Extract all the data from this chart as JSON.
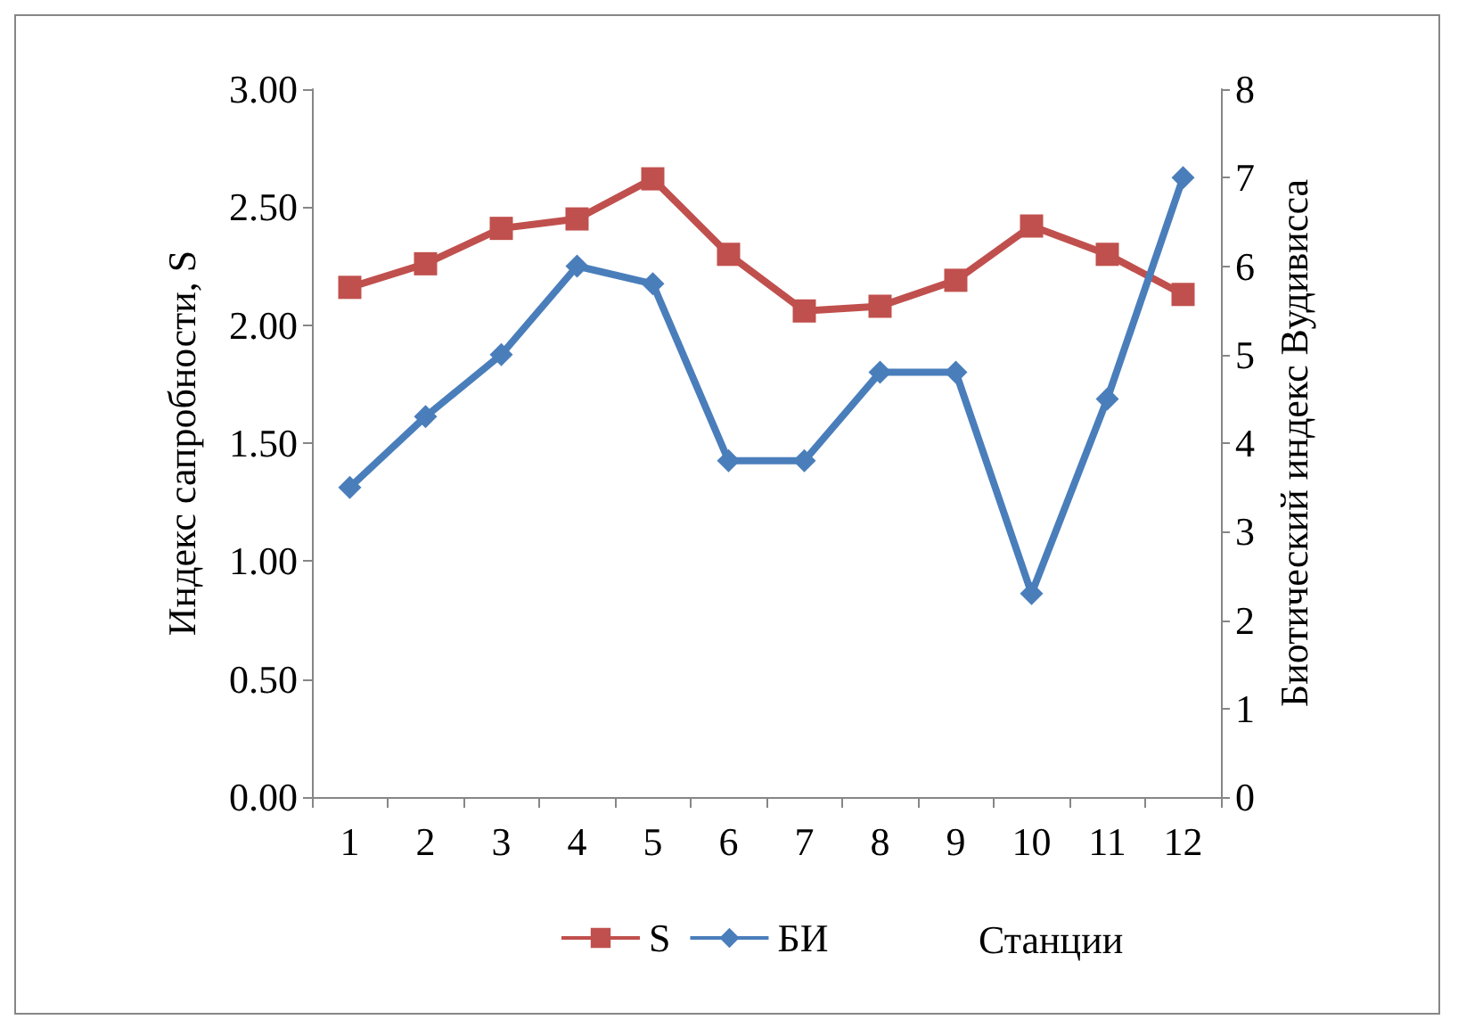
{
  "chart_data": {
    "type": "line",
    "xlabel": "Станции",
    "ylabel": "Индекс сапробности, S",
    "y2label": "Биотический индекс Вудивисса",
    "categories": [
      "1",
      "2",
      "3",
      "4",
      "5",
      "6",
      "7",
      "8",
      "9",
      "10",
      "11",
      "12"
    ],
    "series": [
      {
        "name": "S",
        "color": "#c0504d",
        "marker": "square",
        "values": [
          2.16,
          2.26,
          2.41,
          2.45,
          2.62,
          2.3,
          2.06,
          2.08,
          2.19,
          2.42,
          2.3,
          2.13
        ]
      },
      {
        "name": "БИ",
        "color": "#4a7ebb",
        "marker": "diamond",
        "axis": "y2",
        "values": [
          3.5,
          4.3,
          5.0,
          6.0,
          5.8,
          3.8,
          3.8,
          4.8,
          4.8,
          2.3,
          4.5,
          7.0
        ]
      }
    ],
    "ylim": [
      0,
      3
    ],
    "yticks": [
      {
        "value": 0,
        "label": "0.00"
      },
      {
        "value": 0.5,
        "label": "0.50"
      },
      {
        "value": 1,
        "label": "1.00"
      },
      {
        "value": 1.5,
        "label": "1.50"
      },
      {
        "value": 2,
        "label": "2.00"
      },
      {
        "value": 2.5,
        "label": "2.50"
      },
      {
        "value": 3,
        "label": "3.00"
      }
    ],
    "y2lim": [
      0,
      8
    ],
    "y2ticks": [
      0,
      1,
      2,
      3,
      4,
      5,
      6,
      7,
      8
    ],
    "grid": false,
    "legend": "bottom",
    "line_style": "solid"
  }
}
